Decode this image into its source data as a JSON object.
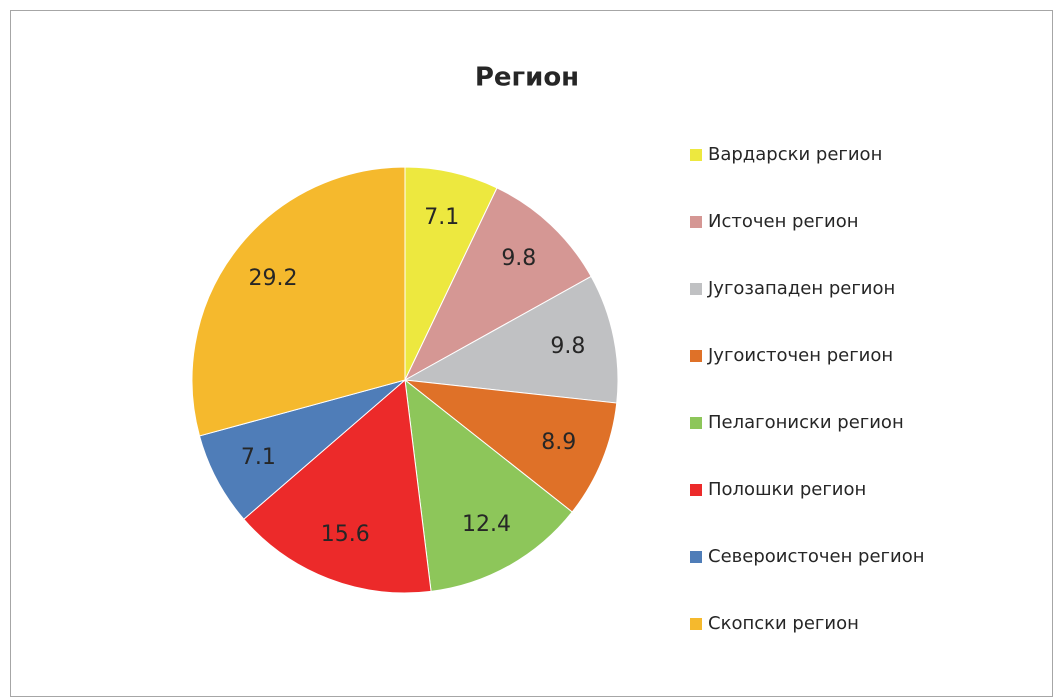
{
  "chart_data": {
    "type": "pie",
    "title": "Регион",
    "categories": [
      "Вардарски регион",
      "Источен регион",
      "Југозападен регион",
      "Југоисточен регион",
      "Пелагониски регион",
      "Полошки регион",
      "Североисточен регион",
      "Скопски регион"
    ],
    "values": [
      7.1,
      9.8,
      9.8,
      8.9,
      12.4,
      15.6,
      7.1,
      29.2
    ],
    "colors": [
      "#ede83f",
      "#d59794",
      "#c0c1c3",
      "#df7128",
      "#8dc65a",
      "#ec2a2a",
      "#4f7db8",
      "#f5b92d"
    ],
    "legend": "right"
  }
}
